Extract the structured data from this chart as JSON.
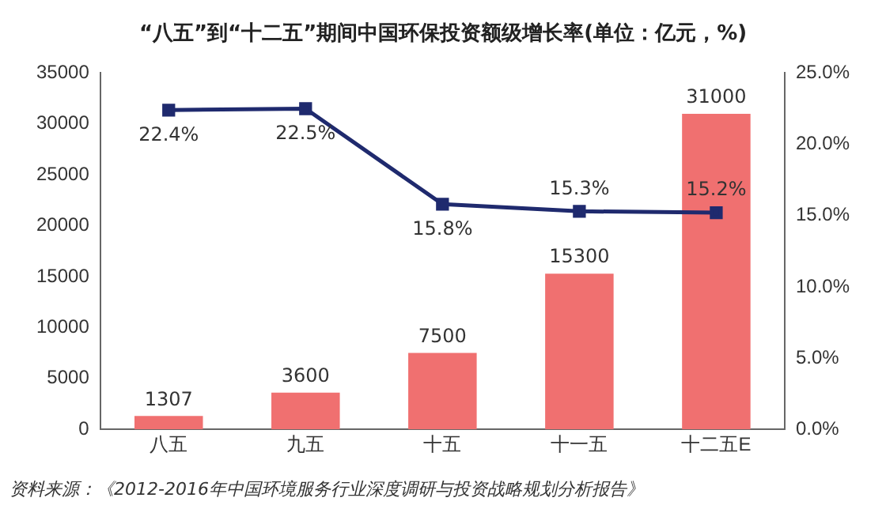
{
  "chart_data": {
    "type": "bar",
    "title": "“八五”到“十二五”期间中国环保投资额级增长率(单位：亿元，%)",
    "categories": [
      "八五",
      "九五",
      "十五",
      "十一五",
      "十二五E"
    ],
    "series": [
      {
        "color": "#f07070",
        "values": [
          1307,
          3600,
          7500,
          15300,
          31000
        ],
        "value_labels": [
          "1307",
          "3600",
          "7500",
          "15300",
          "31000"
        ]
      },
      {
        "type": "line",
        "axis": "y2",
        "color": "#1f2a6e",
        "values": [
          22.4,
          22.5,
          15.8,
          15.3,
          15.2
        ],
        "value_labels": [
          "22.4%",
          "22.5%",
          "15.8%",
          "15.3%",
          "15.2%"
        ]
      }
    ],
    "ylim": [
      0,
      35000
    ],
    "yticks": [
      0,
      5000,
      10000,
      15000,
      20000,
      25000,
      30000,
      35000
    ],
    "y2lim": [
      0,
      25
    ],
    "y2ticks": [
      {
        "value": 0,
        "label": "0.0%"
      },
      {
        "value": 5,
        "label": "5.0%"
      },
      {
        "value": 10,
        "label": "10.0%"
      },
      {
        "value": 15,
        "label": "15.0%"
      },
      {
        "value": 20,
        "label": "20.0%"
      },
      {
        "value": 25,
        "label": "25.0%"
      }
    ],
    "grid": false,
    "legend": false,
    "marker": "square",
    "line_style": "solid",
    "annotations": [
      "资料来源：《2012-2016年中国环境服务行业深度调研与投资战略规划分析报告》"
    ]
  }
}
